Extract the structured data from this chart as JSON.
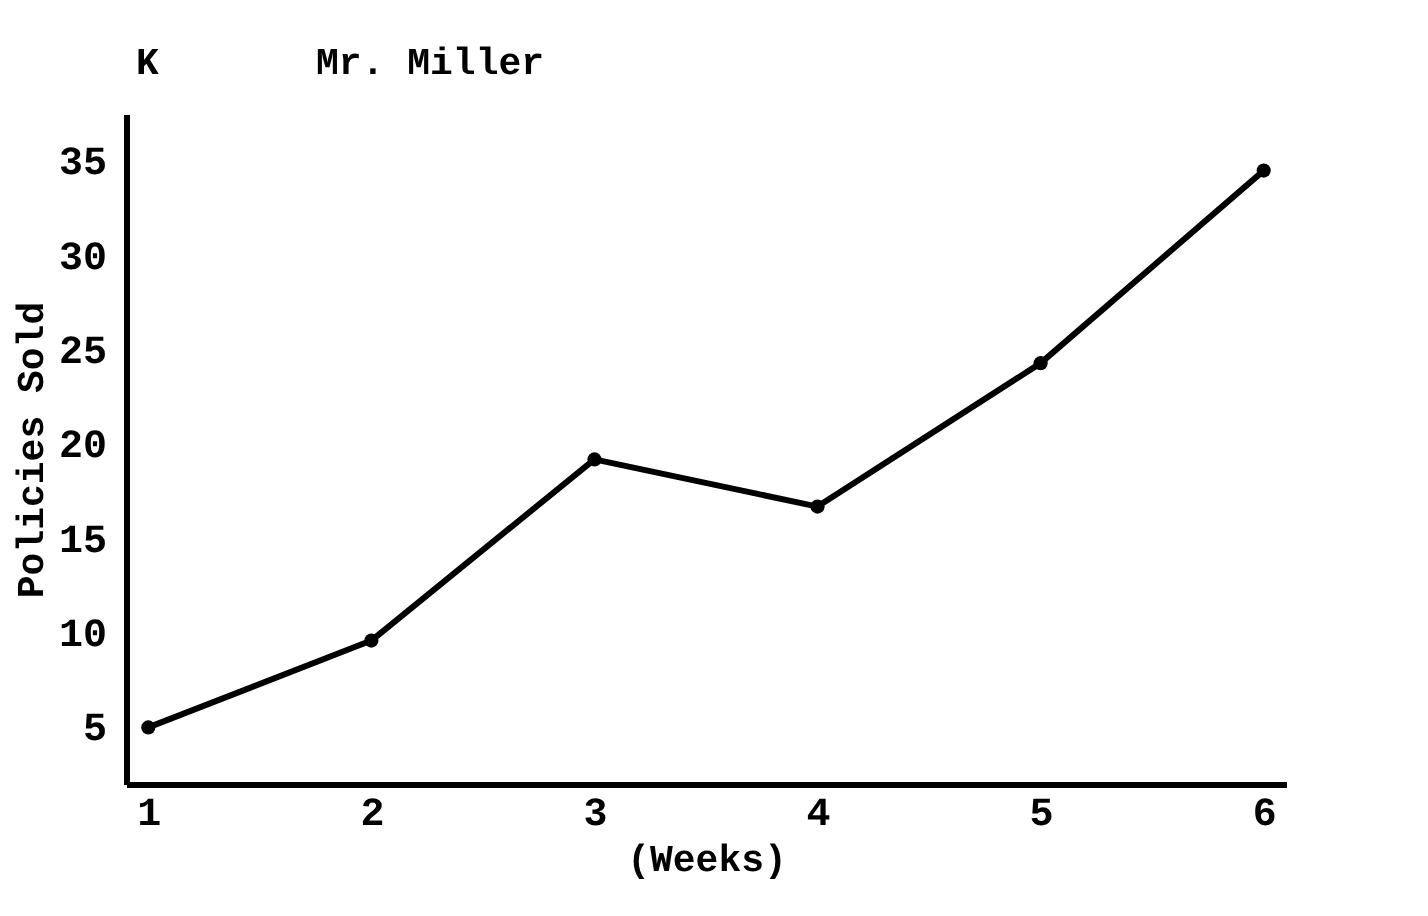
{
  "chart_data": {
    "type": "line",
    "title": "Mr. Miller",
    "annotations": [
      "K"
    ],
    "xlabel": "(Weeks)",
    "ylabel": "Policies Sold",
    "x": [
      1,
      2,
      3,
      4,
      5,
      6
    ],
    "series": [
      {
        "color": "#000000",
        "values": [
          5,
          9.6,
          19.2,
          16.7,
          24.3,
          34.5
        ]
      }
    ],
    "xlim": [
      0.9,
      6.1
    ],
    "xticks": [
      1,
      2,
      3,
      4,
      5,
      6
    ],
    "ylim": [
      2,
      37.5
    ],
    "yticks": [
      5,
      10,
      15,
      20,
      25,
      30,
      35
    ],
    "grid": false,
    "marker": "circle",
    "line_style": "solid"
  }
}
